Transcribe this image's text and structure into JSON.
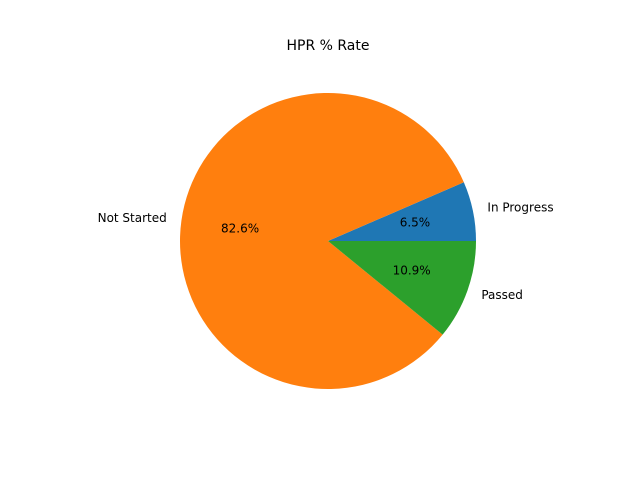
{
  "chart_data": {
    "type": "pie",
    "title": "HPR % Rate",
    "slices": [
      {
        "label": "In Progress",
        "value": 6.5,
        "pct_label": "6.5%",
        "color": "#1f77b4"
      },
      {
        "label": "Not Started",
        "value": 82.6,
        "pct_label": "82.6%",
        "color": "#ff7f0e"
      },
      {
        "label": "Passed",
        "value": 10.9,
        "pct_label": "10.9%",
        "color": "#2ca02c"
      }
    ],
    "start_angle": 0,
    "direction": "counterclockwise",
    "legend": "none"
  }
}
